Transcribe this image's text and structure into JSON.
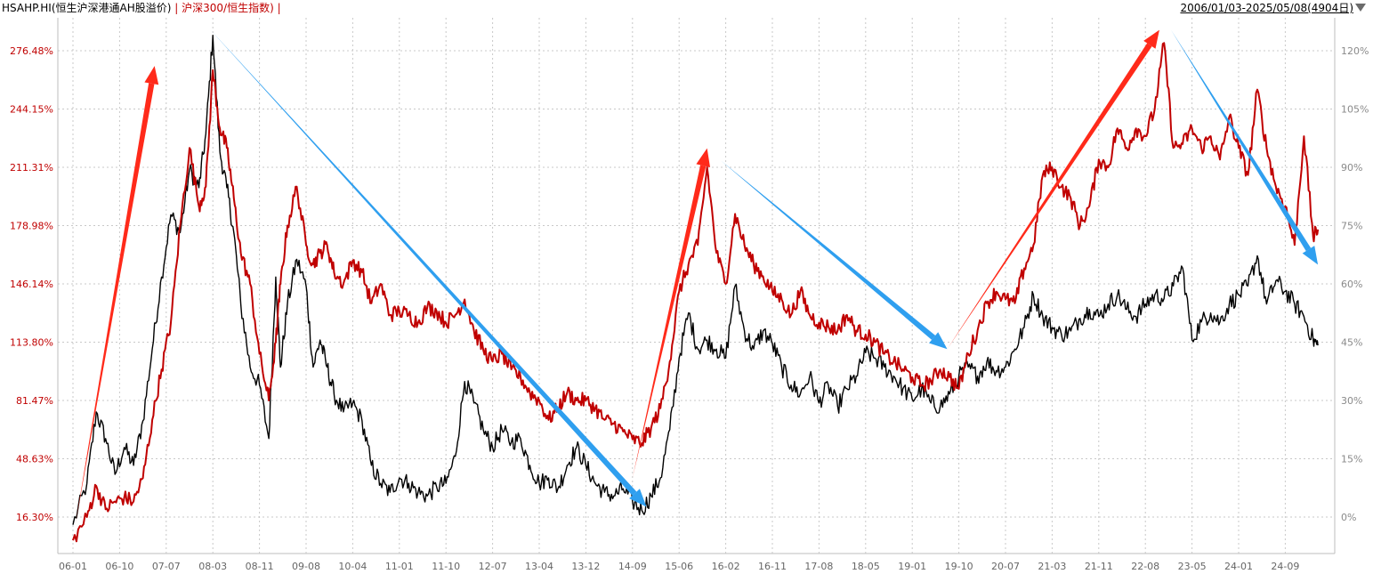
{
  "header": {
    "series1_label": "HSAHP.HI(恒生沪深港通AH股溢价)",
    "separator": "|",
    "series2_label": "沪深300/恒生指数)",
    "date_range": "2006/01/03-2025/05/08(4904日)"
  },
  "colors": {
    "series1": "#000000",
    "series2": "#c00000",
    "up_arrow": "#ff2a1a",
    "down_arrow": "#2f9fef",
    "grid": "#c8c8c8"
  },
  "icons": {
    "dropdown": "triangle-down-icon"
  },
  "chart_data": {
    "type": "line",
    "grid": true,
    "x_tick_labels": [
      "06-01",
      "06-10",
      "07-07",
      "08-03",
      "08-11",
      "09-08",
      "10-04",
      "11-01",
      "11-10",
      "12-07",
      "13-04",
      "13-12",
      "14-09",
      "15-06",
      "16-02",
      "16-11",
      "17-08",
      "18-05",
      "19-01",
      "19-10",
      "20-07",
      "21-03",
      "21-11",
      "22-08",
      "23-05",
      "24-01",
      "24-09"
    ],
    "x_range": [
      0,
      26.7
    ],
    "left_axis": {
      "ticks": [
        "16.30%",
        "48.63%",
        "81.47%",
        "113.80%",
        "146.14%",
        "178.98%",
        "211.31%",
        "244.15%",
        "276.48%"
      ],
      "range": [
        0.0,
        294.0
      ]
    },
    "right_axis": {
      "ticks": [
        "0%",
        "15%",
        "30%",
        "45%",
        "60%",
        "75%",
        "90%",
        "105%",
        "120%"
      ],
      "range": [
        -8.0,
        126.0
      ]
    },
    "series": [
      {
        "name": "HSAHP.HI(恒生沪深港通AH股溢价)",
        "axis": "left",
        "points": [
          [
            0,
            12
          ],
          [
            0.3,
            35
          ],
          [
            0.5,
            75
          ],
          [
            0.7,
            60
          ],
          [
            0.9,
            40
          ],
          [
            1.1,
            55
          ],
          [
            1.3,
            45
          ],
          [
            1.5,
            70
          ],
          [
            1.7,
            110
          ],
          [
            1.9,
            150
          ],
          [
            2.1,
            185
          ],
          [
            2.3,
            175
          ],
          [
            2.5,
            210
          ],
          [
            2.7,
            200
          ],
          [
            2.85,
            230
          ],
          [
            3.0,
            285
          ],
          [
            3.15,
            220
          ],
          [
            3.3,
            200
          ],
          [
            3.45,
            175
          ],
          [
            3.6,
            135
          ],
          [
            3.8,
            100
          ],
          [
            4.0,
            90
          ],
          [
            4.2,
            60
          ],
          [
            4.35,
            150
          ],
          [
            4.45,
            100
          ],
          [
            4.6,
            135
          ],
          [
            4.8,
            160
          ],
          [
            5.0,
            145
          ],
          [
            5.15,
            100
          ],
          [
            5.3,
            115
          ],
          [
            5.45,
            100
          ],
          [
            5.6,
            85
          ],
          [
            5.8,
            75
          ],
          [
            6.0,
            80
          ],
          [
            6.2,
            70
          ],
          [
            6.4,
            45
          ],
          [
            6.6,
            35
          ],
          [
            6.8,
            30
          ],
          [
            7.0,
            38
          ],
          [
            7.2,
            35
          ],
          [
            7.4,
            30
          ],
          [
            7.6,
            28
          ],
          [
            7.8,
            33
          ],
          [
            8.0,
            35
          ],
          [
            8.2,
            50
          ],
          [
            8.4,
            92
          ],
          [
            8.6,
            80
          ],
          [
            8.8,
            65
          ],
          [
            9.0,
            55
          ],
          [
            9.2,
            65
          ],
          [
            9.4,
            58
          ],
          [
            9.6,
            60
          ],
          [
            9.8,
            45
          ],
          [
            10.0,
            35
          ],
          [
            10.2,
            38
          ],
          [
            10.4,
            32
          ],
          [
            10.6,
            45
          ],
          [
            10.8,
            55
          ],
          [
            11.0,
            45
          ],
          [
            11.2,
            35
          ],
          [
            11.4,
            30
          ],
          [
            11.6,
            28
          ],
          [
            11.8,
            32
          ],
          [
            12.0,
            25
          ],
          [
            12.2,
            20
          ],
          [
            12.4,
            28
          ],
          [
            12.6,
            38
          ],
          [
            12.8,
            65
          ],
          [
            13.0,
            105
          ],
          [
            13.2,
            130
          ],
          [
            13.4,
            110
          ],
          [
            13.6,
            115
          ],
          [
            13.8,
            110
          ],
          [
            14.0,
            105
          ],
          [
            14.2,
            145
          ],
          [
            14.4,
            120
          ],
          [
            14.6,
            110
          ],
          [
            14.8,
            120
          ],
          [
            15.0,
            113
          ],
          [
            15.2,
            100
          ],
          [
            15.4,
            90
          ],
          [
            15.6,
            85
          ],
          [
            15.8,
            95
          ],
          [
            16.0,
            80
          ],
          [
            16.2,
            90
          ],
          [
            16.4,
            78
          ],
          [
            16.6,
            88
          ],
          [
            16.8,
            95
          ],
          [
            17.0,
            108
          ],
          [
            17.2,
            105
          ],
          [
            17.4,
            100
          ],
          [
            17.6,
            95
          ],
          [
            17.8,
            88
          ],
          [
            18.0,
            82
          ],
          [
            18.2,
            88
          ],
          [
            18.4,
            80
          ],
          [
            18.6,
            78
          ],
          [
            18.8,
            85
          ],
          [
            19.0,
            95
          ],
          [
            19.2,
            100
          ],
          [
            19.4,
            95
          ],
          [
            19.6,
            103
          ],
          [
            19.8,
            98
          ],
          [
            20.0,
            100
          ],
          [
            20.2,
            110
          ],
          [
            20.4,
            122
          ],
          [
            20.6,
            140
          ],
          [
            20.8,
            128
          ],
          [
            21.0,
            122
          ],
          [
            21.2,
            118
          ],
          [
            21.4,
            120
          ],
          [
            21.6,
            127
          ],
          [
            21.8,
            132
          ],
          [
            22.0,
            128
          ],
          [
            22.2,
            135
          ],
          [
            22.4,
            140
          ],
          [
            22.6,
            132
          ],
          [
            22.8,
            128
          ],
          [
            23.0,
            135
          ],
          [
            23.2,
            140
          ],
          [
            23.4,
            138
          ],
          [
            23.6,
            145
          ],
          [
            23.8,
            155
          ],
          [
            24.0,
            115
          ],
          [
            24.2,
            125
          ],
          [
            24.4,
            130
          ],
          [
            24.6,
            125
          ],
          [
            24.8,
            135
          ],
          [
            25.0,
            140
          ],
          [
            25.2,
            145
          ],
          [
            25.4,
            162
          ],
          [
            25.6,
            135
          ],
          [
            25.8,
            148
          ],
          [
            26.0,
            142
          ],
          [
            26.2,
            135
          ],
          [
            26.4,
            128
          ],
          [
            26.6,
            115
          ],
          [
            26.7,
            112
          ]
        ]
      },
      {
        "name": "沪深300/恒生指数",
        "axis": "right",
        "points": [
          [
            0,
            -6
          ],
          [
            0.3,
            0
          ],
          [
            0.5,
            8
          ],
          [
            0.7,
            2
          ],
          [
            0.9,
            4
          ],
          [
            1.1,
            5
          ],
          [
            1.3,
            4
          ],
          [
            1.5,
            10
          ],
          [
            1.7,
            25
          ],
          [
            1.9,
            38
          ],
          [
            2.1,
            50
          ],
          [
            2.3,
            75
          ],
          [
            2.5,
            95
          ],
          [
            2.7,
            80
          ],
          [
            2.85,
            85
          ],
          [
            3.0,
            115
          ],
          [
            3.15,
            100
          ],
          [
            3.3,
            95
          ],
          [
            3.45,
            82
          ],
          [
            3.6,
            68
          ],
          [
            3.8,
            60
          ],
          [
            4.0,
            42
          ],
          [
            4.2,
            30
          ],
          [
            4.35,
            45
          ],
          [
            4.45,
            60
          ],
          [
            4.6,
            75
          ],
          [
            4.8,
            85
          ],
          [
            5.0,
            70
          ],
          [
            5.15,
            65
          ],
          [
            5.3,
            68
          ],
          [
            5.45,
            70
          ],
          [
            5.6,
            63
          ],
          [
            5.8,
            60
          ],
          [
            6.0,
            66
          ],
          [
            6.2,
            63
          ],
          [
            6.4,
            55
          ],
          [
            6.6,
            60
          ],
          [
            6.8,
            52
          ],
          [
            7.0,
            53
          ],
          [
            7.2,
            52
          ],
          [
            7.4,
            50
          ],
          [
            7.6,
            54
          ],
          [
            7.8,
            53
          ],
          [
            8.0,
            50
          ],
          [
            8.2,
            52
          ],
          [
            8.4,
            56
          ],
          [
            8.6,
            48
          ],
          [
            8.8,
            43
          ],
          [
            9.0,
            40
          ],
          [
            9.2,
            42
          ],
          [
            9.4,
            38
          ],
          [
            9.6,
            36
          ],
          [
            9.8,
            32
          ],
          [
            10.0,
            30
          ],
          [
            10.2,
            25
          ],
          [
            10.4,
            28
          ],
          [
            10.6,
            32
          ],
          [
            10.8,
            30
          ],
          [
            11.0,
            30
          ],
          [
            11.2,
            28
          ],
          [
            11.4,
            25
          ],
          [
            11.6,
            24
          ],
          [
            11.8,
            22
          ],
          [
            12.0,
            20
          ],
          [
            12.2,
            19
          ],
          [
            12.4,
            23
          ],
          [
            12.6,
            28
          ],
          [
            12.8,
            40
          ],
          [
            13.0,
            58
          ],
          [
            13.2,
            65
          ],
          [
            13.4,
            70
          ],
          [
            13.6,
            90
          ],
          [
            13.8,
            68
          ],
          [
            14.0,
            60
          ],
          [
            14.2,
            78
          ],
          [
            14.4,
            70
          ],
          [
            14.6,
            65
          ],
          [
            14.8,
            62
          ],
          [
            15.0,
            58
          ],
          [
            15.2,
            56
          ],
          [
            15.4,
            52
          ],
          [
            15.6,
            58
          ],
          [
            15.8,
            52
          ],
          [
            16.0,
            50
          ],
          [
            16.2,
            49
          ],
          [
            16.4,
            48
          ],
          [
            16.6,
            52
          ],
          [
            16.8,
            48
          ],
          [
            17.0,
            47
          ],
          [
            17.2,
            45
          ],
          [
            17.4,
            42
          ],
          [
            17.6,
            40
          ],
          [
            17.8,
            38
          ],
          [
            18.0,
            36
          ],
          [
            18.2,
            34
          ],
          [
            18.4,
            35
          ],
          [
            18.6,
            38
          ],
          [
            18.8,
            36
          ],
          [
            19.0,
            33
          ],
          [
            19.2,
            42
          ],
          [
            19.4,
            48
          ],
          [
            19.6,
            55
          ],
          [
            19.8,
            58
          ],
          [
            20.0,
            56
          ],
          [
            20.2,
            55
          ],
          [
            20.4,
            64
          ],
          [
            20.6,
            70
          ],
          [
            20.8,
            88
          ],
          [
            21.0,
            90
          ],
          [
            21.2,
            85
          ],
          [
            21.4,
            82
          ],
          [
            21.6,
            75
          ],
          [
            21.8,
            80
          ],
          [
            22.0,
            92
          ],
          [
            22.2,
            90
          ],
          [
            22.4,
            100
          ],
          [
            22.6,
            95
          ],
          [
            22.8,
            100
          ],
          [
            23.0,
            98
          ],
          [
            23.2,
            105
          ],
          [
            23.4,
            122
          ],
          [
            23.6,
            95
          ],
          [
            23.8,
            96
          ],
          [
            24.0,
            100
          ],
          [
            24.2,
            95
          ],
          [
            24.4,
            98
          ],
          [
            24.6,
            92
          ],
          [
            24.8,
            103
          ],
          [
            25.0,
            95
          ],
          [
            25.2,
            88
          ],
          [
            25.4,
            110
          ],
          [
            25.6,
            95
          ],
          [
            25.8,
            85
          ],
          [
            26.0,
            80
          ],
          [
            26.2,
            70
          ],
          [
            26.4,
            98
          ],
          [
            26.6,
            72
          ],
          [
            26.7,
            74
          ]
        ]
      }
    ],
    "annotations": [
      {
        "kind": "up-arrow",
        "axis": "left",
        "from": [
          0.05,
          12
        ],
        "to": [
          1.75,
          268
        ]
      },
      {
        "kind": "down-arrow",
        "axis": "left",
        "from": [
          2.95,
          288
        ],
        "to": [
          12.3,
          22
        ]
      },
      {
        "kind": "up-arrow",
        "axis": "left",
        "from": [
          12.0,
          38
        ],
        "to": [
          13.6,
          222
        ]
      },
      {
        "kind": "down-arrow",
        "axis": "left",
        "from": [
          13.9,
          215
        ],
        "to": [
          18.75,
          110
        ]
      },
      {
        "kind": "up-arrow",
        "axis": "left",
        "from": [
          18.75,
          110
        ],
        "to": [
          23.3,
          288
        ]
      },
      {
        "kind": "down-arrow",
        "axis": "left",
        "from": [
          23.55,
          288
        ],
        "to": [
          26.7,
          157
        ]
      }
    ]
  }
}
